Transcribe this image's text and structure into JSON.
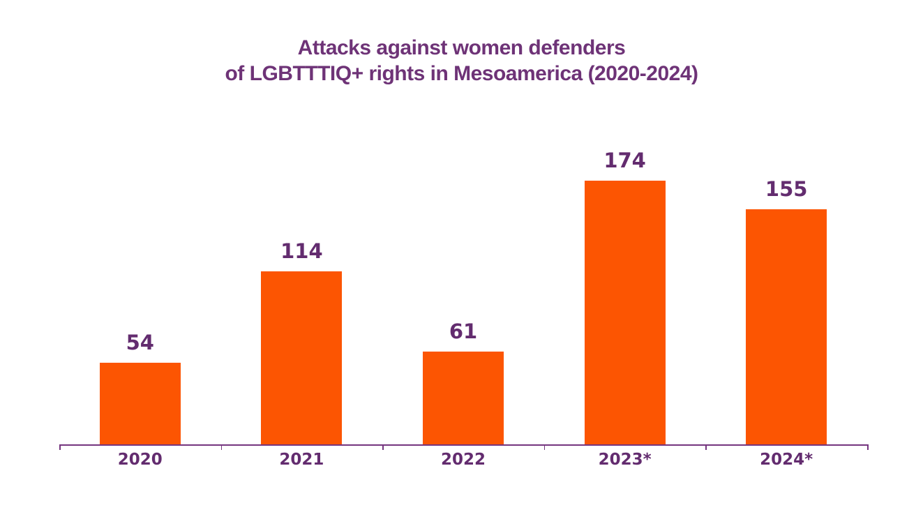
{
  "page": {
    "background_color": "#ffffff"
  },
  "title": {
    "line1": "Attacks against women defenders",
    "line2": "of LGBTTTIQ+ rights in Mesoamerica (2020-2024)",
    "color": "#6E3377"
  },
  "chart_data": {
    "type": "bar",
    "title": "Attacks against women defenders of LGBTTTIQ+ rights in Mesoamerica (2020-2024)",
    "categories": [
      "2020",
      "2021",
      "2022",
      "2023*",
      "2024*"
    ],
    "values": [
      54,
      114,
      61,
      174,
      155
    ],
    "value_labels": [
      "54",
      "114",
      "61",
      "174",
      "155"
    ],
    "xlabel": "",
    "ylabel": "",
    "ylim": [
      0,
      180
    ],
    "grid": false,
    "legend": false,
    "bar_color": "#FC5502",
    "value_label_color": "#632C6F",
    "tick_label_color": "#632C6F",
    "axis_color": "#75357F",
    "y_axis_shown": false,
    "x_axis_shown": true
  }
}
